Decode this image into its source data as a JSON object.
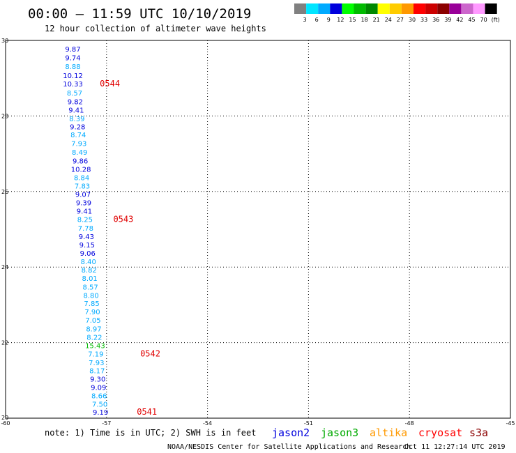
{
  "header": {
    "title": "00:00 – 11:59 UTC 10/10/2019",
    "subtitle": "12 hour collection of altimeter wave heights"
  },
  "legend": {
    "colors": [
      "#808080",
      "#00e5ff",
      "#00aaff",
      "#0000dd",
      "#00ff00",
      "#00bb00",
      "#008800",
      "#ffff00",
      "#ffcc00",
      "#ff9900",
      "#ff0000",
      "#cc0000",
      "#8b0000",
      "#990099",
      "#cc66cc",
      "#ff99ff",
      "#000000"
    ],
    "labels": [
      "3",
      "6",
      "9",
      "12",
      "15",
      "18",
      "21",
      "24",
      "27",
      "30",
      "33",
      "36",
      "39",
      "42",
      "45",
      "70",
      "(ft)"
    ]
  },
  "footer": {
    "note": "note: 1) Time is in UTC; 2) SWH is in feet",
    "satellites": [
      {
        "name": "jason2",
        "color": "#0000dd"
      },
      {
        "name": "jason3",
        "color": "#00aa00"
      },
      {
        "name": "altika",
        "color": "#ff9900"
      },
      {
        "name": "cryosat",
        "color": "#ff0000"
      },
      {
        "name": "s3a",
        "color": "#8b0000"
      }
    ],
    "credit": "NOAA/NESDIS Center for Satellite Applications and Research",
    "generated": "Oct 11 12:27:14 UTC 2019"
  },
  "chart_data": {
    "type": "scatter",
    "title": "00:00 – 11:59 UTC 10/10/2019",
    "subtitle": "12 hour collection of altimeter wave heights",
    "xlim": [
      -60,
      -45
    ],
    "ylim": [
      20,
      30
    ],
    "x_ticks": [
      "-60",
      "-57",
      "-54",
      "-51",
      "-48",
      "-45"
    ],
    "y_ticks": [
      "30",
      "28",
      "26",
      "24",
      "22",
      "20"
    ],
    "grid": true,
    "units": "ft",
    "points": [
      {
        "lon": -58.0,
        "lat": 29.78,
        "swh": "9.87",
        "color": "#0000dd"
      },
      {
        "lon": -58.0,
        "lat": 29.55,
        "swh": "9.74",
        "color": "#0000dd"
      },
      {
        "lon": -58.0,
        "lat": 29.32,
        "swh": "8.88",
        "color": "#00aaff"
      },
      {
        "lon": -58.0,
        "lat": 29.08,
        "swh": "10.12",
        "color": "#0000dd"
      },
      {
        "lon": -58.0,
        "lat": 28.86,
        "swh": "10.33",
        "color": "#0000dd"
      },
      {
        "lon": -57.95,
        "lat": 28.62,
        "swh": "8.57",
        "color": "#00aaff"
      },
      {
        "lon": -57.93,
        "lat": 28.39,
        "swh": "9.82",
        "color": "#0000dd"
      },
      {
        "lon": -57.9,
        "lat": 28.16,
        "swh": "9.41",
        "color": "#0000dd"
      },
      {
        "lon": -57.88,
        "lat": 27.93,
        "swh": "8.39",
        "color": "#00aaff"
      },
      {
        "lon": -57.86,
        "lat": 27.72,
        "swh": "9.28",
        "color": "#0000dd"
      },
      {
        "lon": -57.84,
        "lat": 27.51,
        "swh": "8.74",
        "color": "#00aaff"
      },
      {
        "lon": -57.82,
        "lat": 27.28,
        "swh": "7.93",
        "color": "#00aaff"
      },
      {
        "lon": -57.8,
        "lat": 27.05,
        "swh": "8.49",
        "color": "#00aaff"
      },
      {
        "lon": -57.78,
        "lat": 26.82,
        "swh": "9.86",
        "color": "#0000dd"
      },
      {
        "lon": -57.76,
        "lat": 26.6,
        "swh": "10.28",
        "color": "#0000dd"
      },
      {
        "lon": -57.74,
        "lat": 26.37,
        "swh": "8.84",
        "color": "#00aaff"
      },
      {
        "lon": -57.72,
        "lat": 26.15,
        "swh": "7.83",
        "color": "#00aaff"
      },
      {
        "lon": -57.7,
        "lat": 25.93,
        "swh": "9.07",
        "color": "#0000dd"
      },
      {
        "lon": -57.68,
        "lat": 25.71,
        "swh": "9.39",
        "color": "#0000dd"
      },
      {
        "lon": -57.66,
        "lat": 25.49,
        "swh": "9.41",
        "color": "#0000dd"
      },
      {
        "lon": -57.64,
        "lat": 25.27,
        "swh": "8.25",
        "color": "#00aaff"
      },
      {
        "lon": -57.62,
        "lat": 25.04,
        "swh": "7.78",
        "color": "#00aaff"
      },
      {
        "lon": -57.6,
        "lat": 24.82,
        "swh": "9.43",
        "color": "#0000dd"
      },
      {
        "lon": -57.58,
        "lat": 24.59,
        "swh": "9.15",
        "color": "#0000dd"
      },
      {
        "lon": -57.56,
        "lat": 24.37,
        "swh": "9.06",
        "color": "#0000dd"
      },
      {
        "lon": -57.54,
        "lat": 24.15,
        "swh": "8.40",
        "color": "#00aaff"
      },
      {
        "lon": -57.52,
        "lat": 23.93,
        "swh": "8.82",
        "color": "#00aaff"
      },
      {
        "lon": -57.5,
        "lat": 23.71,
        "swh": "8.01",
        "color": "#00aaff"
      },
      {
        "lon": -57.48,
        "lat": 23.48,
        "swh": "8.57",
        "color": "#00aaff"
      },
      {
        "lon": -57.46,
        "lat": 23.26,
        "swh": "8.80",
        "color": "#00aaff"
      },
      {
        "lon": -57.44,
        "lat": 23.04,
        "swh": "7.85",
        "color": "#00aaff"
      },
      {
        "lon": -57.42,
        "lat": 22.82,
        "swh": "7.90",
        "color": "#00aaff"
      },
      {
        "lon": -57.4,
        "lat": 22.6,
        "swh": "7.05",
        "color": "#00aaff"
      },
      {
        "lon": -57.38,
        "lat": 22.37,
        "swh": "8.97",
        "color": "#00aaff"
      },
      {
        "lon": -57.36,
        "lat": 22.15,
        "swh": "8.22",
        "color": "#00aaff"
      },
      {
        "lon": -57.34,
        "lat": 21.93,
        "swh": "15.43",
        "color": "#00bb00"
      },
      {
        "lon": -57.32,
        "lat": 21.71,
        "swh": "7.19",
        "color": "#00aaff"
      },
      {
        "lon": -57.3,
        "lat": 21.48,
        "swh": "7.93",
        "color": "#00aaff"
      },
      {
        "lon": -57.28,
        "lat": 21.26,
        "swh": "8.17",
        "color": "#00aaff"
      },
      {
        "lon": -57.26,
        "lat": 21.04,
        "swh": "9.30",
        "color": "#0000dd"
      },
      {
        "lon": -57.24,
        "lat": 20.82,
        "swh": "9.09",
        "color": "#0000dd"
      },
      {
        "lon": -57.22,
        "lat": 20.6,
        "swh": "8.66",
        "color": "#00aaff"
      },
      {
        "lon": -57.2,
        "lat": 20.38,
        "swh": "7.50",
        "color": "#00aaff"
      },
      {
        "lon": -57.18,
        "lat": 20.17,
        "swh": "9.19",
        "color": "#0000dd"
      }
    ],
    "passes": [
      {
        "label": "0544",
        "lon": -57.2,
        "lat": 28.86
      },
      {
        "label": "0543",
        "lon": -56.8,
        "lat": 25.27
      },
      {
        "label": "0542",
        "lon": -56.0,
        "lat": 21.71
      },
      {
        "label": "0541",
        "lon": -56.1,
        "lat": 20.17
      }
    ]
  }
}
